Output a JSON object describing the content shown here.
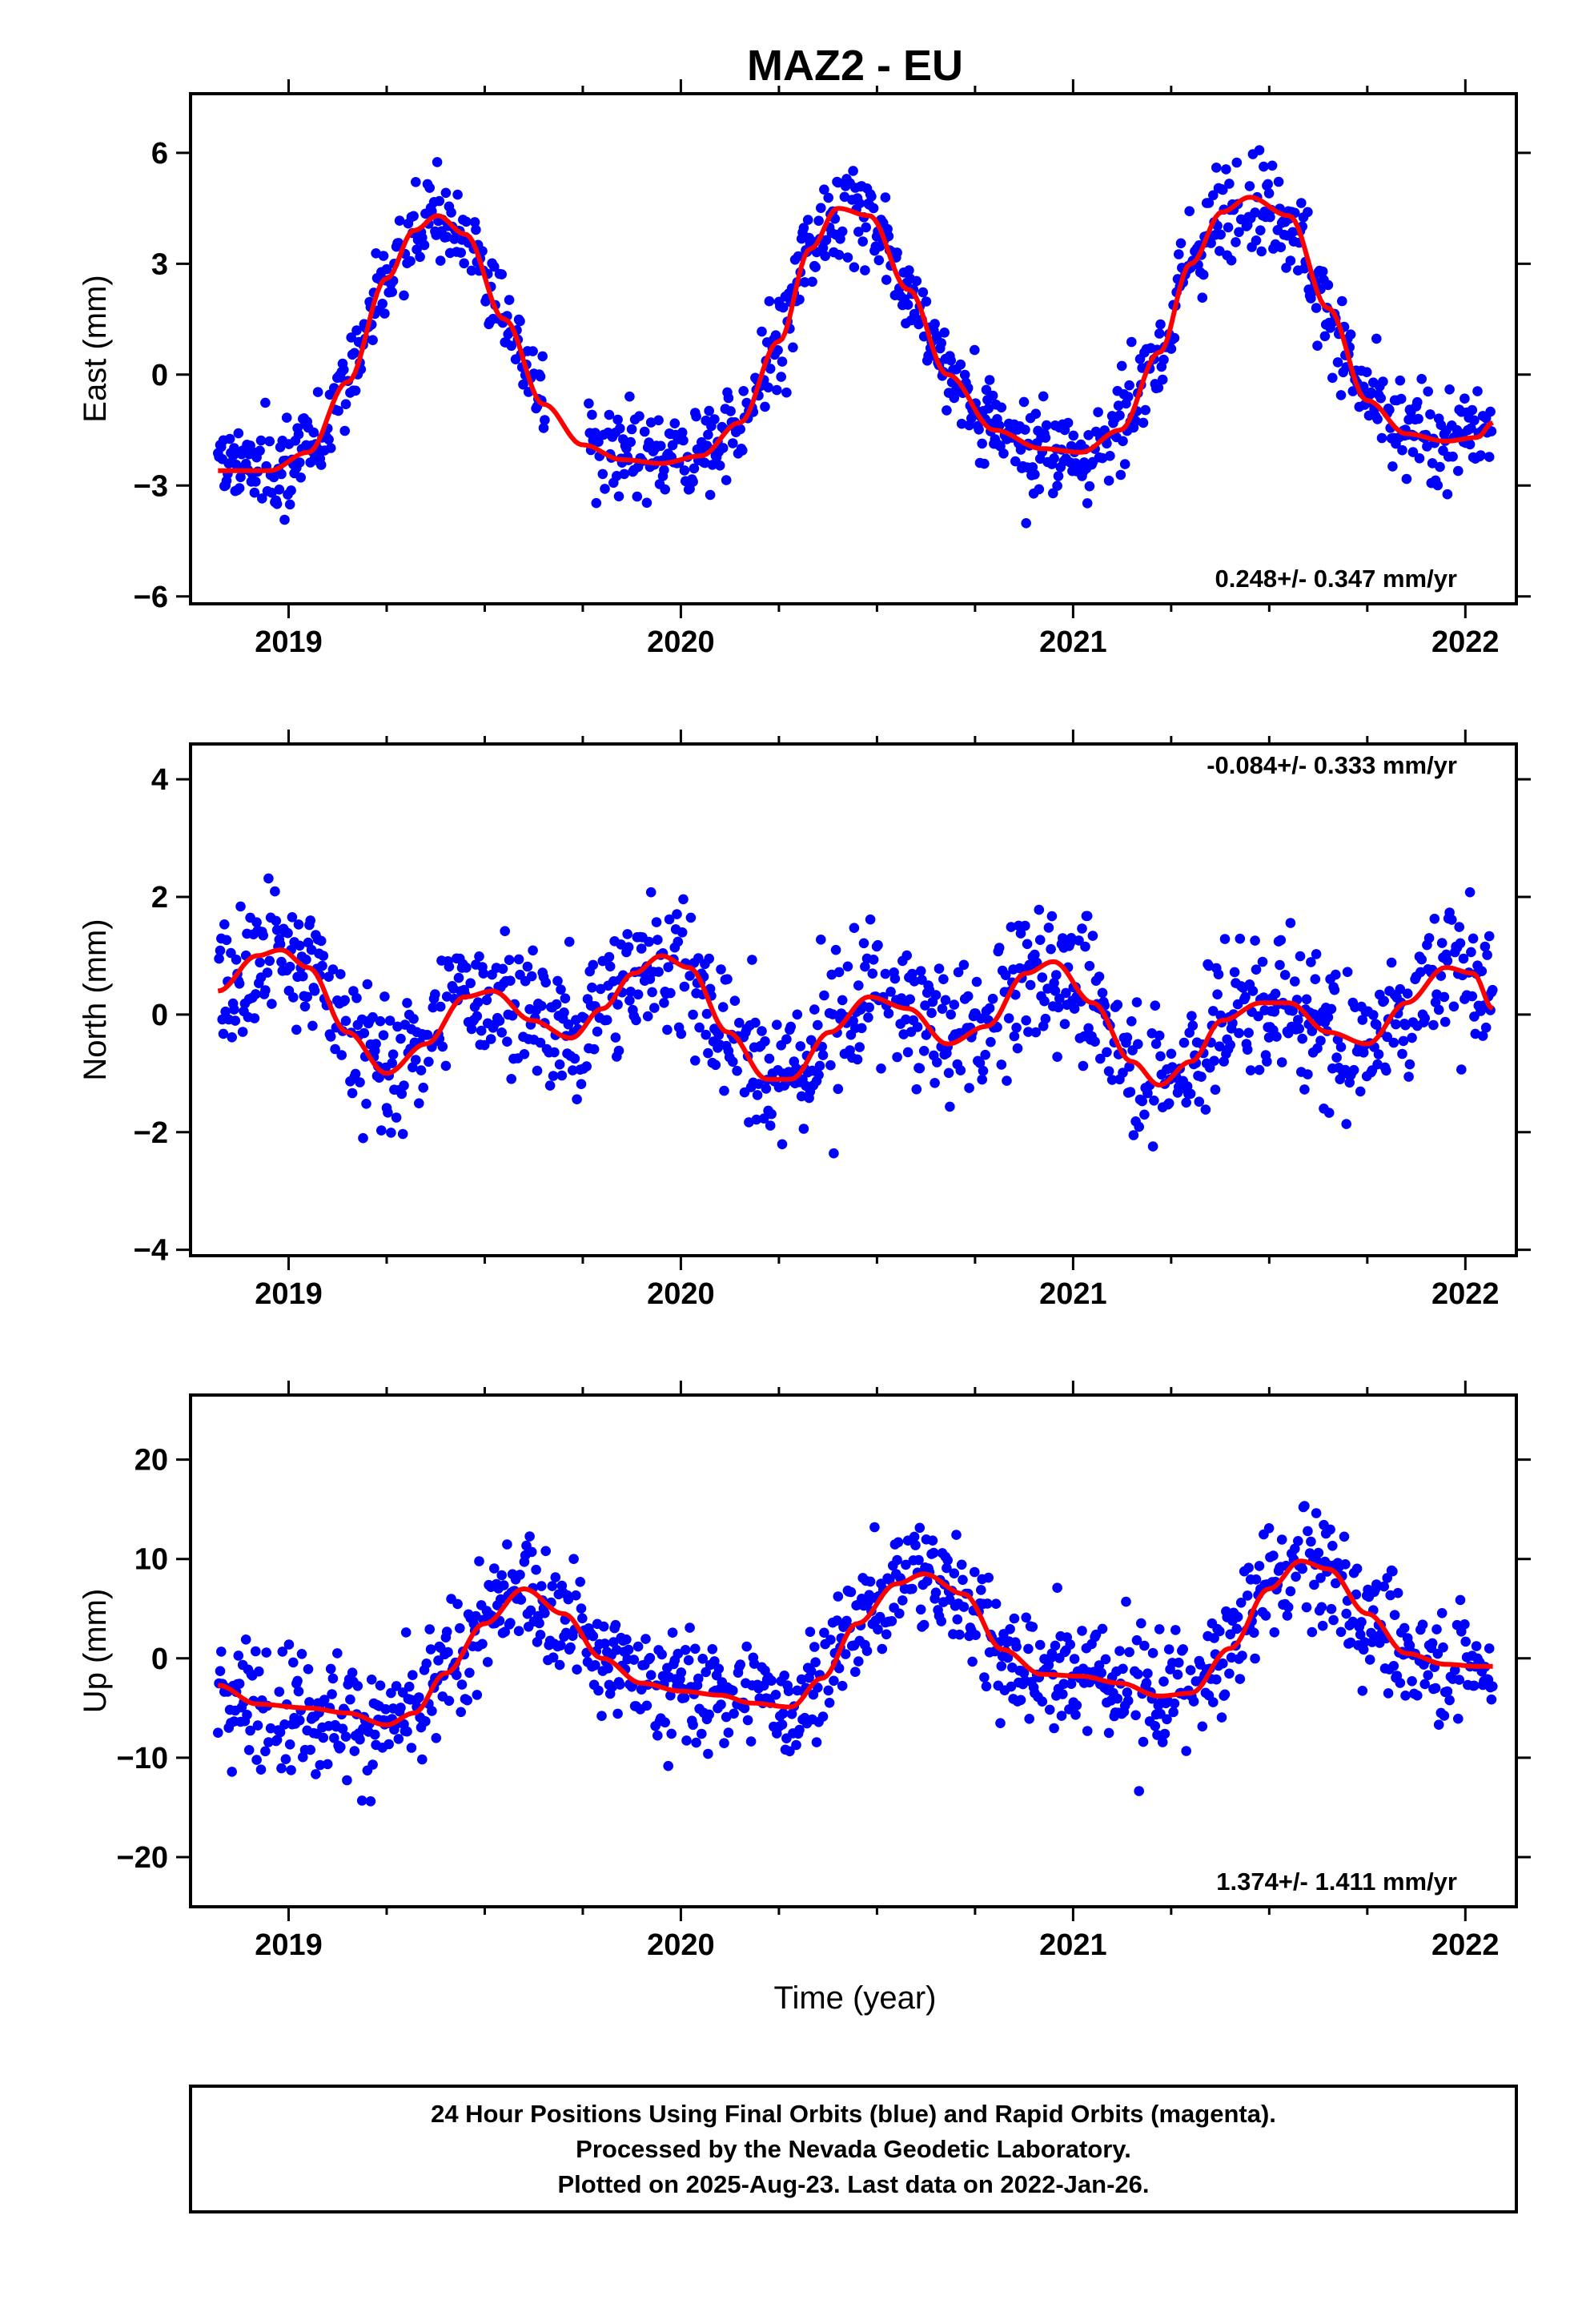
{
  "chart_data": {
    "type": "scatter",
    "title": "MAZ2 - EU",
    "xlabel": "Time (year)",
    "xlim": [
      2018.75,
      2022.13
    ],
    "x_ticks": [
      2019,
      2020,
      2021,
      2022
    ],
    "x_tick_labels": [
      "2019",
      "2020",
      "2021",
      "2022"
    ],
    "data_start": 2018.82,
    "data_end": 2022.07,
    "panels": [
      {
        "id": "east",
        "ylabel": "East (mm)",
        "ylim": [
          -6.2,
          7.6
        ],
        "y_ticks": [
          -6,
          -3,
          0,
          3,
          6
        ],
        "y_tick_labels": [
          "−6",
          "−3",
          "0",
          "3",
          "6"
        ],
        "rate_text": "0.248+/- 0.347 mm/yr",
        "rate_position": "bottom-right",
        "model_curve": {
          "x": [
            2018.82,
            2018.95,
            2019.05,
            2019.15,
            2019.25,
            2019.32,
            2019.38,
            2019.45,
            2019.55,
            2019.65,
            2019.75,
            2019.85,
            2019.95,
            2020.05,
            2020.15,
            2020.25,
            2020.33,
            2020.4,
            2020.48,
            2020.58,
            2020.68,
            2020.8,
            2020.92,
            2021.02,
            2021.12,
            2021.22,
            2021.3,
            2021.38,
            2021.45,
            2021.55,
            2021.65,
            2021.75,
            2021.85,
            2021.95,
            2022.03,
            2022.07
          ],
          "y": [
            -2.6,
            -2.6,
            -2.1,
            -0.2,
            2.6,
            3.9,
            4.3,
            3.8,
            1.5,
            -0.8,
            -1.9,
            -2.3,
            -2.4,
            -2.2,
            -1.3,
            0.9,
            3.4,
            4.5,
            4.3,
            2.3,
            0.0,
            -1.5,
            -2.0,
            -2.1,
            -1.5,
            0.6,
            3.0,
            4.4,
            4.8,
            4.3,
            1.8,
            -0.7,
            -1.6,
            -1.8,
            -1.7,
            -1.3
          ]
        }
      },
      {
        "id": "north",
        "ylabel": "North (mm)",
        "ylim": [
          -4.1,
          4.6
        ],
        "y_ticks": [
          -4,
          -2,
          0,
          2,
          4
        ],
        "y_tick_labels": [
          "−4",
          "−2",
          "0",
          "2",
          "4"
        ],
        "rate_text": "-0.084+/- 0.333 mm/yr",
        "rate_position": "top-right",
        "model_curve": {
          "x": [
            2018.82,
            2018.92,
            2018.98,
            2019.05,
            2019.15,
            2019.25,
            2019.35,
            2019.45,
            2019.52,
            2019.62,
            2019.72,
            2019.8,
            2019.88,
            2019.95,
            2020.02,
            2020.12,
            2020.22,
            2020.28,
            2020.38,
            2020.48,
            2020.58,
            2020.68,
            2020.78,
            2020.88,
            2020.95,
            2021.05,
            2021.15,
            2021.22,
            2021.3,
            2021.38,
            2021.48,
            2021.55,
            2021.65,
            2021.75,
            2021.85,
            2021.95,
            2022.02,
            2022.07
          ],
          "y": [
            0.4,
            1.0,
            1.1,
            0.8,
            -0.3,
            -1.0,
            -0.5,
            0.3,
            0.4,
            -0.1,
            -0.4,
            0.1,
            0.7,
            1.0,
            0.8,
            -0.3,
            -1.1,
            -1.1,
            -0.3,
            0.3,
            0.1,
            -0.5,
            -0.2,
            0.7,
            0.9,
            0.2,
            -0.8,
            -1.2,
            -0.8,
            -0.1,
            0.2,
            0.2,
            -0.3,
            -0.5,
            0.2,
            0.8,
            0.7,
            0.1
          ]
        }
      },
      {
        "id": "up",
        "ylabel": "Up (mm)",
        "ylim": [
          -25,
          26.5
        ],
        "y_ticks": [
          -20,
          -10,
          0,
          10,
          20
        ],
        "y_tick_labels": [
          "−20",
          "−10",
          "0",
          "10",
          "20"
        ],
        "rate_text": "1.374+/- 1.411 mm/yr",
        "rate_position": "bottom-right",
        "model_curve": {
          "x": [
            2018.82,
            2018.92,
            2019.05,
            2019.15,
            2019.25,
            2019.32,
            2019.4,
            2019.5,
            2019.6,
            2019.7,
            2019.8,
            2019.9,
            2020.0,
            2020.1,
            2020.18,
            2020.28,
            2020.36,
            2020.45,
            2020.55,
            2020.62,
            2020.72,
            2020.82,
            2020.92,
            2021.02,
            2021.12,
            2021.22,
            2021.3,
            2021.4,
            2021.5,
            2021.58,
            2021.65,
            2021.75,
            2021.85,
            2021.95,
            2022.03,
            2022.07
          ],
          "y": [
            -2.7,
            -4.6,
            -5.0,
            -5.5,
            -6.7,
            -5.5,
            -1.5,
            3.5,
            7.0,
            4.5,
            0.0,
            -2.5,
            -3.3,
            -3.7,
            -4.5,
            -4.9,
            -2.0,
            3.5,
            7.5,
            8.5,
            6.5,
            0.9,
            -1.6,
            -1.8,
            -2.5,
            -3.8,
            -3.5,
            1.0,
            7.0,
            9.8,
            9.0,
            4.5,
            0.5,
            -0.6,
            -0.8,
            -0.8
          ]
        }
      }
    ],
    "scatter_color": "#0000ff",
    "model_color": "#ff0000",
    "notes": "Dense daily GPS position scatter (blue dots) around the red seasonal model curve in each panel; scatter values are approximated from the model with the visible spread."
  },
  "footer": {
    "line1": "24 Hour Positions Using Final Orbits (blue) and Rapid Orbits (magenta).",
    "line2": "Processed by the Nevada Geodetic Laboratory.",
    "line3": "Plotted on 2025-Aug-23. Last data on 2022-Jan-26."
  }
}
